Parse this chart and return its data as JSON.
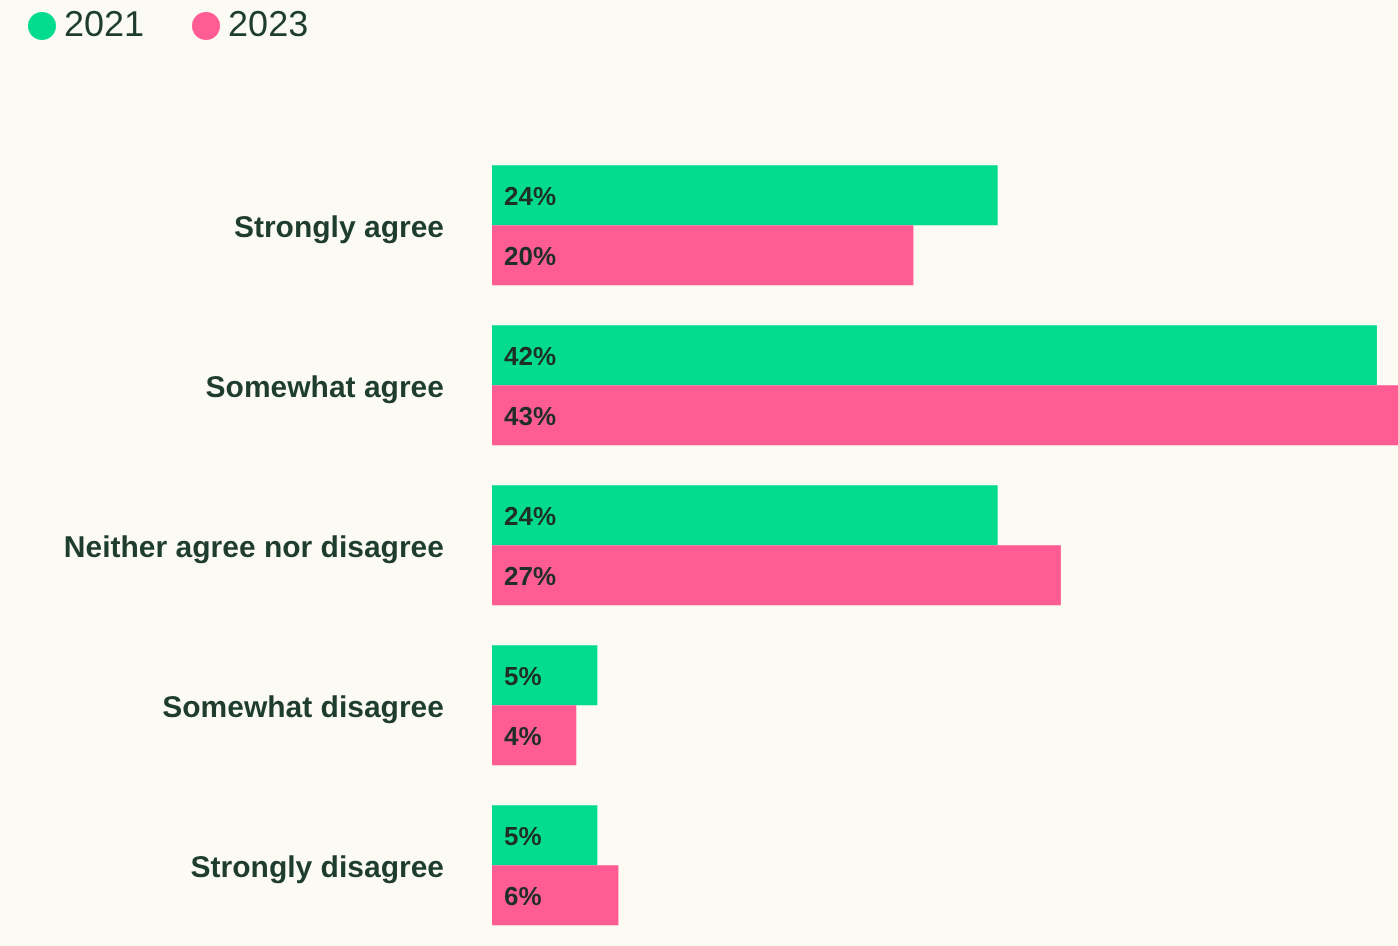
{
  "chart_data": {
    "type": "bar",
    "orientation": "horizontal",
    "categories": [
      "Strongly agree",
      "Somewhat agree",
      "Neither agree nor disagree",
      "Somewhat disagree",
      "Strongly disagree"
    ],
    "legend": "top left",
    "series": [
      {
        "name": "2021",
        "color": "#03dc8f",
        "values": [
          24,
          42,
          24,
          5,
          5
        ],
        "value_labels": [
          "24%",
          "42%",
          "24%",
          "5%",
          "5%"
        ]
      },
      {
        "name": "2023",
        "color": "#ff5c93",
        "values": [
          20,
          43,
          27,
          4,
          6
        ],
        "value_labels": [
          "20%",
          "43%",
          "27%",
          "4%",
          "6%"
        ]
      }
    ]
  }
}
